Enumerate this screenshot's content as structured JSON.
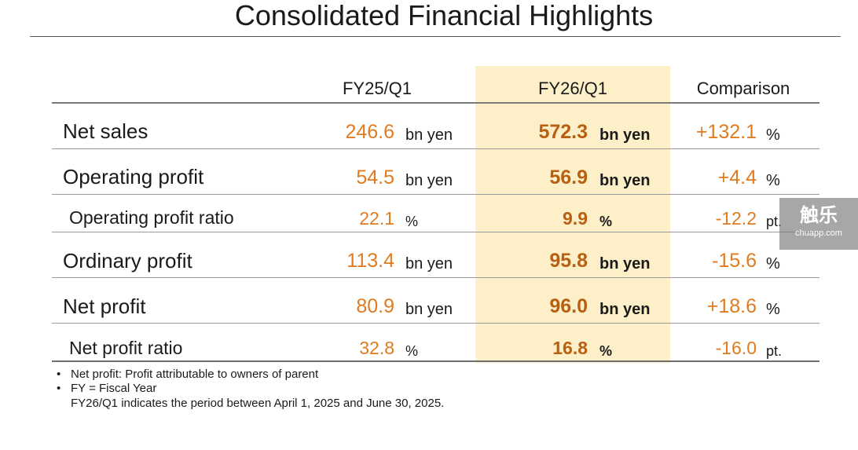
{
  "title": "Consolidated Financial Highlights",
  "columns": {
    "fy25": "FY25/Q1",
    "fy26": "FY26/Q1",
    "comparison": "Comparison"
  },
  "rows": [
    {
      "label": "Net sales",
      "fy25": "246.6",
      "fy25_unit": "bn yen",
      "fy26": "572.3",
      "fy26_unit": "bn yen",
      "cmp": "+132.1",
      "cmp_unit": "%"
    },
    {
      "label": "Operating profit",
      "fy25": "54.5",
      "fy25_unit": "bn yen",
      "fy26": "56.9",
      "fy26_unit": "bn yen",
      "cmp": "+4.4",
      "cmp_unit": "%"
    },
    {
      "label": "Operating profit ratio",
      "fy25": "22.1",
      "fy25_unit": "%",
      "fy26": "9.9",
      "fy26_unit": "%",
      "cmp": "-12.2",
      "cmp_unit": "pt."
    },
    {
      "label": "Ordinary profit",
      "fy25": "113.4",
      "fy25_unit": "bn yen",
      "fy26": "95.8",
      "fy26_unit": "bn yen",
      "cmp": "-15.6",
      "cmp_unit": "%"
    },
    {
      "label": "Net profit",
      "fy25": "80.9",
      "fy25_unit": "bn yen",
      "fy26": "96.0",
      "fy26_unit": "bn yen",
      "cmp": "+18.6",
      "cmp_unit": "%"
    },
    {
      "label": "Net profit ratio",
      "fy25": "32.8",
      "fy25_unit": "%",
      "fy26": "16.8",
      "fy26_unit": "%",
      "cmp": "-16.0",
      "cmp_unit": "pt."
    }
  ],
  "notes": {
    "bullet": "•",
    "items": [
      "Net profit: Profit attributable to owners of parent",
      "FY = Fiscal Year"
    ],
    "continuation": "FY26/Q1 indicates the period between April 1, 2025 and June 30, 2025."
  },
  "watermark": {
    "main": "触乐",
    "sub": "chuapp.com"
  },
  "colors": {
    "highlight": "#fdf0c8",
    "value_fy25": "#e07b1f",
    "value_fy26": "#b85f12",
    "value_comparison": "#e07b1f"
  }
}
